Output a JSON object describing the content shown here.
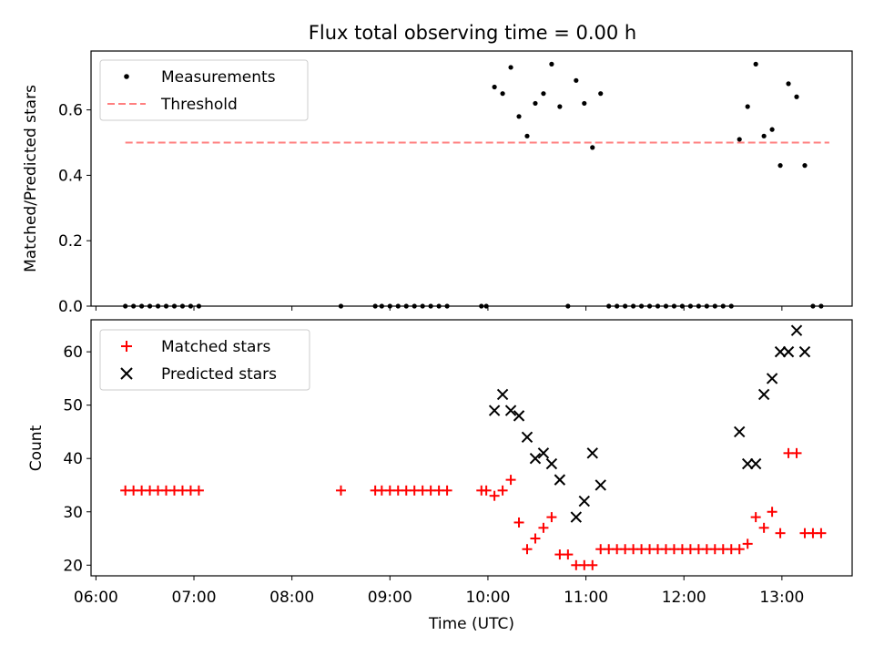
{
  "title": "Flux total observing time = 0.00 h",
  "chart_data": [
    {
      "type": "scatter",
      "ylabel": "Matched/Predicted stars",
      "ylim": [
        0,
        0.78
      ],
      "yticks": [
        0.0,
        0.2,
        0.4,
        0.6
      ],
      "ytick_labels": [
        "0.0",
        "0.2",
        "0.4",
        "0.6"
      ],
      "legend_placement": "upper-left",
      "legend": [
        {
          "label": "Measurements",
          "marker": "dot",
          "color": "#000000"
        },
        {
          "label": "Threshold",
          "marker": "dashed-line",
          "color": "#ff7f7f"
        }
      ],
      "threshold": {
        "value": 0.5,
        "x": [
          "06:18",
          "13:29"
        ]
      },
      "series": [
        {
          "name": "Measurements",
          "color": "#000000",
          "points": [
            [
              "06:18",
              0
            ],
            [
              "06:23",
              0
            ],
            [
              "06:28",
              0
            ],
            [
              "06:33",
              0
            ],
            [
              "06:38",
              0
            ],
            [
              "06:43",
              0
            ],
            [
              "06:48",
              0
            ],
            [
              "06:53",
              0
            ],
            [
              "06:58",
              0
            ],
            [
              "07:03",
              0
            ],
            [
              "08:30",
              0
            ],
            [
              "08:51",
              0
            ],
            [
              "08:55",
              0
            ],
            [
              "09:00",
              0
            ],
            [
              "09:05",
              0
            ],
            [
              "09:10",
              0
            ],
            [
              "09:15",
              0
            ],
            [
              "09:20",
              0
            ],
            [
              "09:25",
              0
            ],
            [
              "09:30",
              0
            ],
            [
              "09:35",
              0
            ],
            [
              "09:56",
              0
            ],
            [
              "09:59",
              0
            ],
            [
              "10:04",
              0.67
            ],
            [
              "10:09",
              0.65
            ],
            [
              "10:14",
              0.73
            ],
            [
              "10:19",
              0.58
            ],
            [
              "10:24",
              0.52
            ],
            [
              "10:29",
              0.62
            ],
            [
              "10:34",
              0.65
            ],
            [
              "10:39",
              0.74
            ],
            [
              "10:44",
              0.61
            ],
            [
              "10:49",
              0
            ],
            [
              "10:54",
              0.69
            ],
            [
              "10:59",
              0.62
            ],
            [
              "11:04",
              0.485
            ],
            [
              "11:09",
              0.65
            ],
            [
              "11:14",
              0
            ],
            [
              "11:19",
              0
            ],
            [
              "11:24",
              0
            ],
            [
              "11:29",
              0
            ],
            [
              "11:34",
              0
            ],
            [
              "11:39",
              0
            ],
            [
              "11:44",
              0
            ],
            [
              "11:49",
              0
            ],
            [
              "11:54",
              0
            ],
            [
              "11:59",
              0
            ],
            [
              "12:04",
              0
            ],
            [
              "12:09",
              0
            ],
            [
              "12:14",
              0
            ],
            [
              "12:19",
              0
            ],
            [
              "12:24",
              0
            ],
            [
              "12:29",
              0
            ],
            [
              "12:34",
              0.51
            ],
            [
              "12:39",
              0.61
            ],
            [
              "12:44",
              0.74
            ],
            [
              "12:49",
              0.52
            ],
            [
              "12:54",
              0.54
            ],
            [
              "12:59",
              0.43
            ],
            [
              "13:04",
              0.68
            ],
            [
              "13:09",
              0.64
            ],
            [
              "13:14",
              0.43
            ],
            [
              "13:19",
              0
            ],
            [
              "13:24",
              0
            ]
          ]
        }
      ]
    },
    {
      "type": "scatter",
      "xlabel": "Time (UTC)",
      "ylabel": "Count",
      "xlim": [
        "05:57",
        "13:43"
      ],
      "xticks": [
        "06:00",
        "07:00",
        "08:00",
        "09:00",
        "10:00",
        "11:00",
        "12:00",
        "13:00"
      ],
      "ylim": [
        18,
        66
      ],
      "yticks": [
        20,
        30,
        40,
        50,
        60
      ],
      "ytick_labels": [
        "20",
        "30",
        "40",
        "50",
        "60"
      ],
      "legend_placement": "upper-left",
      "legend": [
        {
          "label": "Matched stars",
          "marker": "plus",
          "color": "#ff0000"
        },
        {
          "label": "Predicted stars",
          "marker": "x",
          "color": "#000000"
        }
      ],
      "series": [
        {
          "name": "Matched stars",
          "marker": "plus",
          "color": "#ff0000",
          "points": [
            [
              "06:18",
              34
            ],
            [
              "06:23",
              34
            ],
            [
              "06:28",
              34
            ],
            [
              "06:33",
              34
            ],
            [
              "06:38",
              34
            ],
            [
              "06:43",
              34
            ],
            [
              "06:48",
              34
            ],
            [
              "06:53",
              34
            ],
            [
              "06:58",
              34
            ],
            [
              "07:03",
              34
            ],
            [
              "08:30",
              34
            ],
            [
              "08:51",
              34
            ],
            [
              "08:55",
              34
            ],
            [
              "09:00",
              34
            ],
            [
              "09:05",
              34
            ],
            [
              "09:10",
              34
            ],
            [
              "09:15",
              34
            ],
            [
              "09:20",
              34
            ],
            [
              "09:25",
              34
            ],
            [
              "09:30",
              34
            ],
            [
              "09:35",
              34
            ],
            [
              "09:56",
              34
            ],
            [
              "09:59",
              34
            ],
            [
              "10:04",
              33
            ],
            [
              "10:09",
              34
            ],
            [
              "10:14",
              36
            ],
            [
              "10:19",
              28
            ],
            [
              "10:24",
              23
            ],
            [
              "10:29",
              25
            ],
            [
              "10:34",
              27
            ],
            [
              "10:39",
              29
            ],
            [
              "10:44",
              22
            ],
            [
              "10:49",
              22
            ],
            [
              "10:54",
              20
            ],
            [
              "10:59",
              20
            ],
            [
              "11:04",
              20
            ],
            [
              "11:09",
              23
            ],
            [
              "11:14",
              23
            ],
            [
              "11:19",
              23
            ],
            [
              "11:24",
              23
            ],
            [
              "11:29",
              23
            ],
            [
              "11:34",
              23
            ],
            [
              "11:39",
              23
            ],
            [
              "11:44",
              23
            ],
            [
              "11:49",
              23
            ],
            [
              "11:54",
              23
            ],
            [
              "11:59",
              23
            ],
            [
              "12:04",
              23
            ],
            [
              "12:09",
              23
            ],
            [
              "12:14",
              23
            ],
            [
              "12:19",
              23
            ],
            [
              "12:24",
              23
            ],
            [
              "12:29",
              23
            ],
            [
              "12:34",
              23
            ],
            [
              "12:39",
              24
            ],
            [
              "12:44",
              29
            ],
            [
              "12:49",
              27
            ],
            [
              "12:54",
              30
            ],
            [
              "12:59",
              26
            ],
            [
              "13:04",
              41
            ],
            [
              "13:09",
              41
            ],
            [
              "13:14",
              26
            ],
            [
              "13:19",
              26
            ],
            [
              "13:24",
              26
            ]
          ]
        },
        {
          "name": "Predicted stars",
          "marker": "x",
          "color": "#000000",
          "points": [
            [
              "10:04",
              49
            ],
            [
              "10:09",
              52
            ],
            [
              "10:14",
              49
            ],
            [
              "10:19",
              48
            ],
            [
              "10:24",
              44
            ],
            [
              "10:29",
              40
            ],
            [
              "10:34",
              41
            ],
            [
              "10:39",
              39
            ],
            [
              "10:44",
              36
            ],
            [
              "10:54",
              29
            ],
            [
              "10:59",
              32
            ],
            [
              "11:04",
              41
            ],
            [
              "11:09",
              35
            ],
            [
              "12:34",
              45
            ],
            [
              "12:39",
              39
            ],
            [
              "12:44",
              39
            ],
            [
              "12:49",
              52
            ],
            [
              "12:54",
              55
            ],
            [
              "12:59",
              60
            ],
            [
              "13:04",
              60
            ],
            [
              "13:09",
              64
            ],
            [
              "13:14",
              60
            ]
          ]
        }
      ]
    }
  ]
}
